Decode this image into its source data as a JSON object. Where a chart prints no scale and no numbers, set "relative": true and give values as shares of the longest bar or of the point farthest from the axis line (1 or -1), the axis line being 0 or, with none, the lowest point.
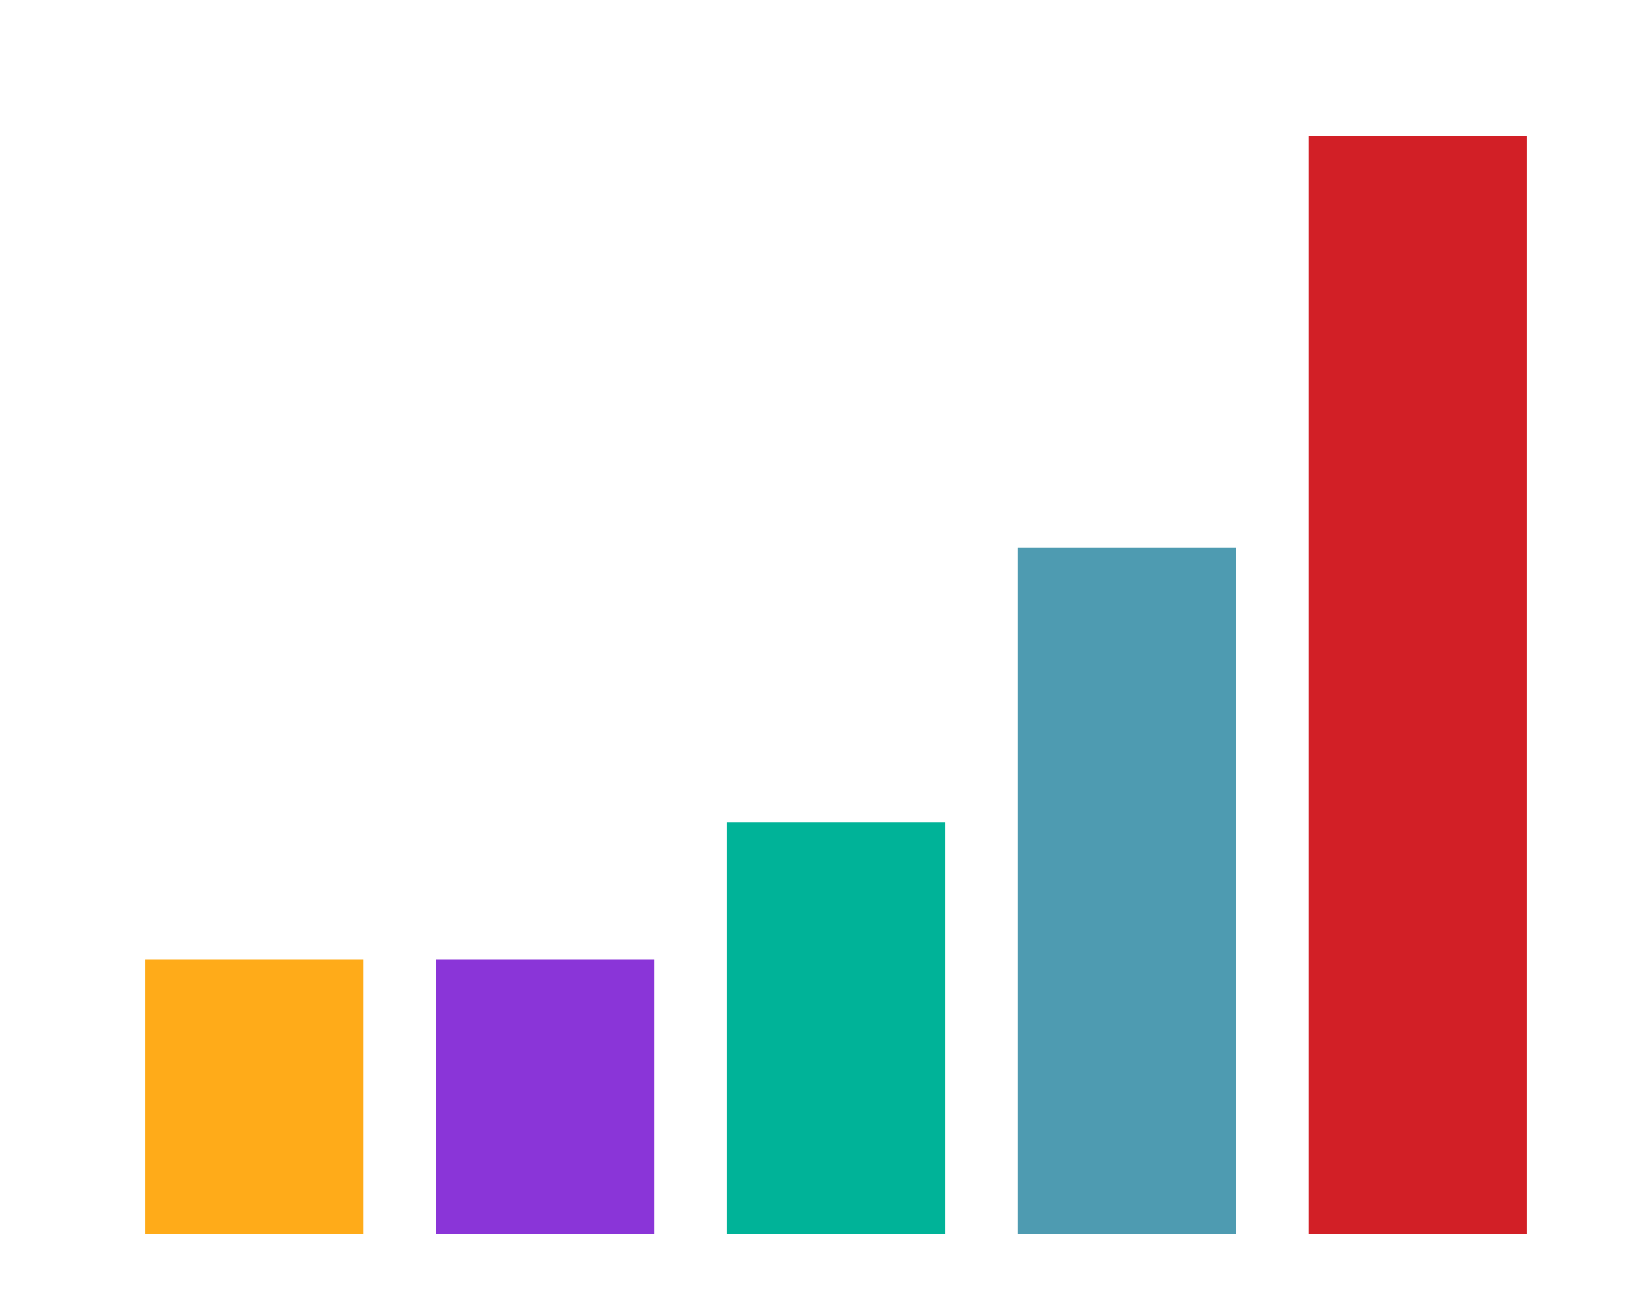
{
  "chart_data": {
    "type": "bar",
    "relative": true,
    "categories": [
      null,
      null,
      null,
      null,
      null
    ],
    "values": [
      0.25,
      0.25,
      0.375,
      0.625,
      1
    ],
    "colors": [
      "#ffab19",
      "#8a35d8",
      "#00b398",
      "#4e9bb1",
      "#d21f26"
    ]
  }
}
